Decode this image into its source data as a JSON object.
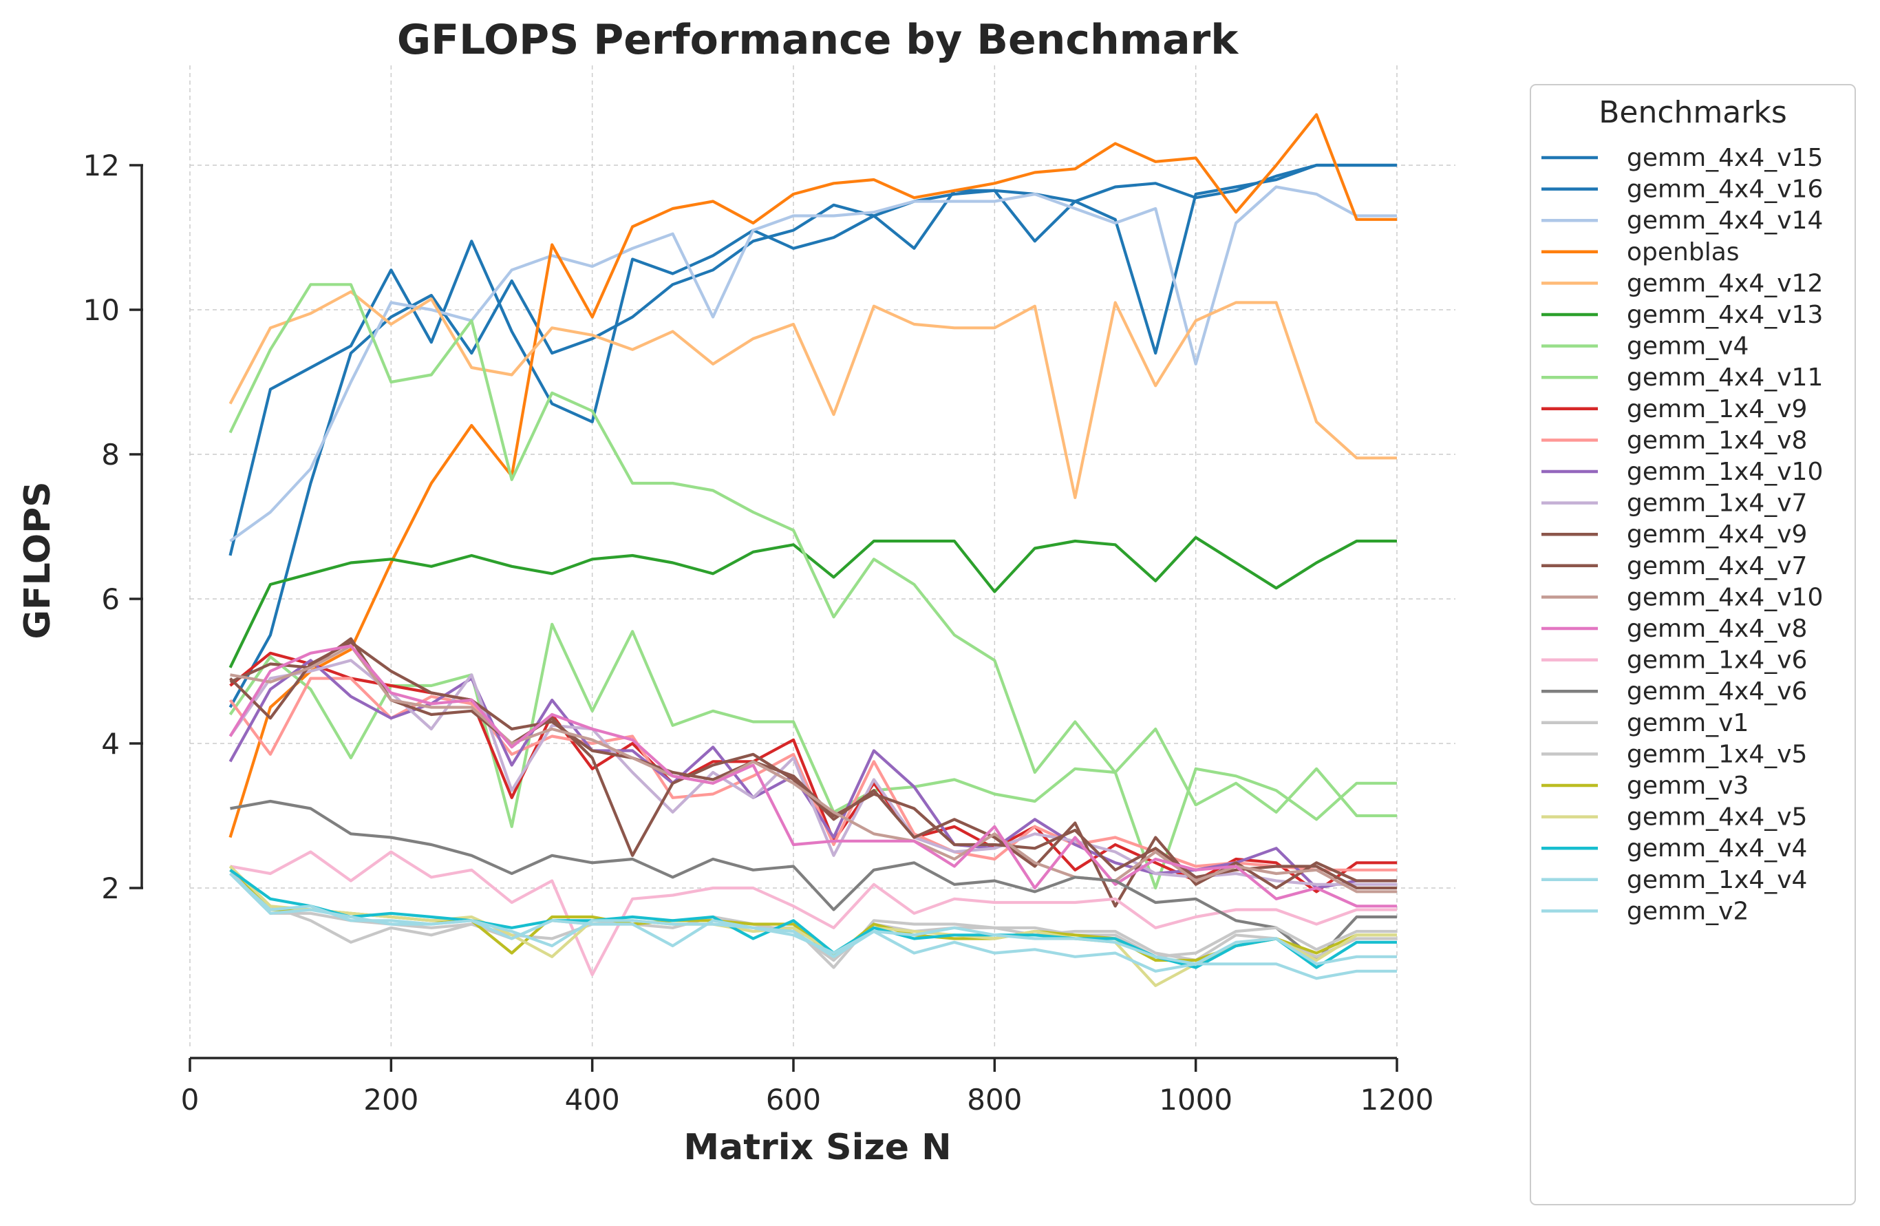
{
  "chart_data": {
    "type": "line",
    "title": "GFLOPS Performance by Benchmark",
    "xlabel": "Matrix Size N",
    "ylabel": "GFLOPS",
    "xlim": [
      0,
      1200
    ],
    "ylim": [
      0,
      13
    ],
    "xticks": [
      "0",
      "200",
      "400",
      "600",
      "800",
      "1000",
      "1200"
    ],
    "yticks": [
      "2",
      "4",
      "6",
      "8",
      "10",
      "12"
    ],
    "grid": true,
    "legend": {
      "title": "Benchmarks",
      "placement": "right, outside"
    },
    "x": [
      40,
      80,
      120,
      160,
      200,
      240,
      280,
      320,
      360,
      400,
      440,
      480,
      520,
      560,
      600,
      640,
      680,
      720,
      760,
      800,
      840,
      880,
      920,
      960,
      1000,
      1040,
      1080,
      1120,
      1160,
      1200
    ],
    "series": [
      {
        "name": "gemm_4x4_v15",
        "color": "#1f77b4",
        "values": [
          4.5,
          5.5,
          7.6,
          9.4,
          9.9,
          10.2,
          9.4,
          10.4,
          9.4,
          9.6,
          9.9,
          10.35,
          10.55,
          10.95,
          11.1,
          11.45,
          11.3,
          11.5,
          11.6,
          11.65,
          11.6,
          11.5,
          11.25,
          9.4,
          11.6,
          11.7,
          11.8,
          12.0,
          12.0,
          12.0
        ]
      },
      {
        "name": "gemm_4x4_v16",
        "color": "#1f77b4",
        "values": [
          6.6,
          8.9,
          9.2,
          9.5,
          10.55,
          9.55,
          10.95,
          9.7,
          8.7,
          8.45,
          10.7,
          10.5,
          10.75,
          11.1,
          10.85,
          11.0,
          11.3,
          10.85,
          11.65,
          11.65,
          10.95,
          11.5,
          11.7,
          11.75,
          11.55,
          11.65,
          11.85,
          12.0,
          12.0,
          12.0
        ]
      },
      {
        "name": "gemm_4x4_v14",
        "color": "#aec7e8",
        "values": [
          6.8,
          7.2,
          7.8,
          9.0,
          10.1,
          10.0,
          9.85,
          10.55,
          10.75,
          10.6,
          10.85,
          11.05,
          9.9,
          11.1,
          11.3,
          11.3,
          11.35,
          11.5,
          11.5,
          11.5,
          11.6,
          11.4,
          11.2,
          11.4,
          9.25,
          11.2,
          11.7,
          11.6,
          11.3,
          11.3
        ]
      },
      {
        "name": "openblas",
        "color": "#ff7f0e",
        "values": [
          2.7,
          4.5,
          5.0,
          5.3,
          6.5,
          7.6,
          8.4,
          7.7,
          10.9,
          9.9,
          11.15,
          11.4,
          11.5,
          11.2,
          11.6,
          11.75,
          11.8,
          11.55,
          11.65,
          11.75,
          11.9,
          11.95,
          12.3,
          12.05,
          12.1,
          11.35,
          12.0,
          12.7,
          11.25,
          11.25
        ]
      },
      {
        "name": "gemm_4x4_v12",
        "color": "#ffbb78",
        "values": [
          8.7,
          9.75,
          9.95,
          10.25,
          9.8,
          10.15,
          9.2,
          9.1,
          9.75,
          9.65,
          9.45,
          9.7,
          9.25,
          9.6,
          9.8,
          8.55,
          10.05,
          9.8,
          9.75,
          9.75,
          10.05,
          7.4,
          10.1,
          8.95,
          9.85,
          10.1,
          10.1,
          8.45,
          7.95,
          7.95
        ]
      },
      {
        "name": "gemm_4x4_v13",
        "color": "#2ca02c",
        "values": [
          5.05,
          6.2,
          6.35,
          6.5,
          6.55,
          6.45,
          6.6,
          6.45,
          6.35,
          6.55,
          6.6,
          6.5,
          6.35,
          6.65,
          6.75,
          6.3,
          6.8,
          6.8,
          6.8,
          6.1,
          6.7,
          6.8,
          6.75,
          6.25,
          6.85,
          6.5,
          6.15,
          6.5,
          6.8,
          6.8
        ]
      },
      {
        "name": "gemm_v4",
        "color": "#98df8a",
        "values": [
          8.3,
          9.45,
          10.35,
          10.35,
          9.0,
          9.1,
          9.85,
          7.65,
          8.85,
          8.6,
          7.6,
          7.6,
          7.5,
          7.2,
          6.95,
          5.75,
          6.55,
          6.2,
          5.5,
          5.15,
          3.6,
          4.3,
          3.6,
          2.0,
          3.65,
          3.55,
          3.35,
          2.95,
          3.45,
          3.45
        ]
      },
      {
        "name": "gemm_4x4_v11",
        "color": "#98df8a",
        "values": [
          4.4,
          5.2,
          4.75,
          3.8,
          4.8,
          4.8,
          4.95,
          2.85,
          5.65,
          4.45,
          5.55,
          4.25,
          4.45,
          4.3,
          4.3,
          3.05,
          3.35,
          3.4,
          3.5,
          3.3,
          3.2,
          3.65,
          3.6,
          4.2,
          3.15,
          3.45,
          3.05,
          3.65,
          3.0,
          3.0
        ]
      },
      {
        "name": "gemm_1x4_v9",
        "color": "#d62728",
        "values": [
          4.8,
          5.25,
          5.1,
          4.9,
          4.8,
          4.7,
          4.6,
          3.25,
          4.4,
          3.65,
          4.0,
          3.45,
          3.75,
          3.75,
          4.05,
          2.65,
          3.45,
          2.7,
          2.85,
          2.55,
          2.85,
          2.25,
          2.6,
          2.35,
          2.1,
          2.4,
          2.35,
          1.95,
          2.35,
          2.35
        ]
      },
      {
        "name": "gemm_1x4_v8",
        "color": "#ff9896",
        "values": [
          4.6,
          3.85,
          4.9,
          4.9,
          4.35,
          4.65,
          4.55,
          3.85,
          4.1,
          4.0,
          4.1,
          3.25,
          3.3,
          3.55,
          3.85,
          2.6,
          3.75,
          2.75,
          2.5,
          2.4,
          2.85,
          2.6,
          2.7,
          2.5,
          2.3,
          2.35,
          2.3,
          2.25,
          2.25,
          2.25
        ]
      },
      {
        "name": "gemm_1x4_v10",
        "color": "#9467bd",
        "values": [
          3.75,
          4.75,
          5.15,
          4.65,
          4.35,
          4.55,
          4.9,
          3.7,
          4.6,
          3.9,
          3.9,
          3.45,
          3.95,
          3.25,
          3.55,
          2.7,
          3.9,
          3.4,
          2.6,
          2.55,
          2.95,
          2.6,
          2.35,
          2.2,
          2.25,
          2.35,
          2.55,
          2.0,
          2.1,
          2.1
        ]
      },
      {
        "name": "gemm_1x4_v7",
        "color": "#c5b0d5",
        "values": [
          4.1,
          4.9,
          5.0,
          5.15,
          4.7,
          4.2,
          4.95,
          3.35,
          4.25,
          4.2,
          3.6,
          3.05,
          3.6,
          3.25,
          3.8,
          2.45,
          3.5,
          2.7,
          2.5,
          2.55,
          2.75,
          2.65,
          2.5,
          2.2,
          2.15,
          2.2,
          2.1,
          2.05,
          2.05,
          2.05
        ]
      },
      {
        "name": "gemm_4x4_v9",
        "color": "#8c564b",
        "values": [
          4.9,
          4.35,
          5.1,
          5.4,
          5.0,
          4.7,
          4.6,
          4.2,
          4.3,
          3.9,
          3.8,
          3.6,
          3.5,
          3.75,
          3.55,
          3.0,
          3.3,
          3.1,
          2.6,
          2.6,
          2.55,
          2.8,
          2.25,
          2.55,
          2.15,
          2.25,
          2.3,
          2.3,
          2.0,
          2.0
        ]
      },
      {
        "name": "gemm_4x4_v7",
        "color": "#8c564b",
        "values": [
          4.85,
          5.1,
          5.05,
          5.45,
          4.6,
          4.4,
          4.45,
          4.0,
          4.35,
          3.8,
          2.45,
          3.45,
          3.7,
          3.85,
          3.5,
          2.95,
          3.35,
          2.7,
          2.95,
          2.7,
          2.3,
          2.9,
          1.75,
          2.7,
          2.05,
          2.35,
          2.0,
          2.35,
          2.1,
          2.1
        ]
      },
      {
        "name": "gemm_4x4_v10",
        "color": "#c49c94",
        "values": [
          4.95,
          4.85,
          5.05,
          5.35,
          4.6,
          4.5,
          4.5,
          4.0,
          4.2,
          4.05,
          3.8,
          3.55,
          3.45,
          3.75,
          3.45,
          3.05,
          2.75,
          2.65,
          2.4,
          2.75,
          2.35,
          2.15,
          2.1,
          2.5,
          2.1,
          2.3,
          2.2,
          2.25,
          1.95,
          1.95
        ]
      },
      {
        "name": "gemm_4x4_v8",
        "color": "#e377c2",
        "values": [
          4.1,
          5.0,
          5.25,
          5.35,
          4.7,
          4.55,
          4.6,
          3.95,
          4.4,
          4.2,
          4.05,
          3.55,
          3.45,
          3.7,
          2.6,
          2.65,
          2.65,
          2.65,
          2.3,
          2.85,
          2.0,
          2.7,
          2.05,
          2.4,
          2.25,
          2.3,
          1.85,
          2.0,
          1.75,
          1.75
        ]
      },
      {
        "name": "gemm_1x4_v6",
        "color": "#f7b6d2",
        "values": [
          2.3,
          2.2,
          2.5,
          2.1,
          2.5,
          2.15,
          2.25,
          1.8,
          2.1,
          0.8,
          1.85,
          1.9,
          2.0,
          2.0,
          1.75,
          1.45,
          2.05,
          1.65,
          1.85,
          1.8,
          1.8,
          1.8,
          1.85,
          1.45,
          1.6,
          1.7,
          1.7,
          1.5,
          1.7,
          1.7
        ]
      },
      {
        "name": "gemm_4x4_v6",
        "color": "#7f7f7f",
        "values": [
          3.1,
          3.2,
          3.1,
          2.75,
          2.7,
          2.6,
          2.45,
          2.2,
          2.45,
          2.35,
          2.4,
          2.15,
          2.4,
          2.25,
          2.3,
          1.7,
          2.25,
          2.35,
          2.05,
          2.1,
          1.95,
          2.15,
          2.1,
          1.8,
          1.85,
          1.55,
          1.45,
          1.0,
          1.6,
          1.6
        ]
      },
      {
        "name": "gemm_v1",
        "color": "#c7c7c7",
        "values": [
          2.3,
          1.75,
          1.55,
          1.25,
          1.45,
          1.35,
          1.5,
          1.35,
          1.3,
          1.5,
          1.55,
          1.5,
          1.5,
          1.45,
          1.45,
          0.9,
          1.55,
          1.5,
          1.5,
          1.45,
          1.45,
          1.35,
          1.35,
          1.05,
          1.1,
          1.4,
          1.45,
          1.15,
          1.4,
          1.4
        ]
      },
      {
        "name": "gemm_1x4_v5",
        "color": "#c7c7c7",
        "values": [
          2.25,
          1.65,
          1.65,
          1.55,
          1.5,
          1.45,
          1.5,
          1.3,
          1.55,
          1.5,
          1.5,
          1.45,
          1.6,
          1.5,
          1.4,
          1.0,
          1.5,
          1.4,
          1.45,
          1.45,
          1.35,
          1.4,
          1.4,
          1.1,
          1.0,
          1.35,
          1.3,
          1.05,
          1.3,
          1.3
        ]
      },
      {
        "name": "gemm_v3",
        "color": "#bcbd22",
        "values": [
          2.3,
          1.7,
          1.7,
          1.65,
          1.6,
          1.55,
          1.55,
          1.1,
          1.6,
          1.6,
          1.5,
          1.55,
          1.55,
          1.5,
          1.5,
          1.05,
          1.5,
          1.35,
          1.3,
          1.3,
          1.4,
          1.35,
          1.3,
          1.0,
          1.0,
          1.2,
          1.3,
          1.1,
          1.35,
          1.35
        ]
      },
      {
        "name": "gemm_4x4_v5",
        "color": "#dbdb8d",
        "values": [
          2.3,
          1.75,
          1.7,
          1.65,
          1.6,
          1.55,
          1.6,
          1.35,
          1.05,
          1.55,
          1.55,
          1.5,
          1.5,
          1.4,
          1.45,
          1.1,
          1.45,
          1.4,
          1.35,
          1.3,
          1.4,
          1.3,
          1.25,
          0.65,
          0.95,
          1.2,
          1.3,
          1.0,
          1.35,
          1.35
        ]
      },
      {
        "name": "gemm_4x4_v4",
        "color": "#17becf",
        "values": [
          2.25,
          1.85,
          1.75,
          1.6,
          1.65,
          1.6,
          1.55,
          1.45,
          1.55,
          1.55,
          1.6,
          1.55,
          1.6,
          1.3,
          1.55,
          1.1,
          1.45,
          1.3,
          1.35,
          1.35,
          1.35,
          1.3,
          1.3,
          1.05,
          0.9,
          1.2,
          1.3,
          0.9,
          1.25,
          1.25
        ]
      },
      {
        "name": "gemm_1x4_v4",
        "color": "#9edae5",
        "values": [
          2.2,
          1.65,
          1.7,
          1.6,
          1.5,
          1.5,
          1.55,
          1.4,
          1.2,
          1.55,
          1.55,
          1.5,
          1.5,
          1.45,
          1.4,
          1.05,
          1.4,
          1.35,
          1.45,
          1.35,
          1.3,
          1.3,
          1.25,
          1.05,
          0.95,
          1.25,
          1.3,
          0.95,
          1.05,
          1.05
        ]
      },
      {
        "name": "gemm_v2",
        "color": "#9edae5",
        "values": [
          2.2,
          1.7,
          1.75,
          1.55,
          1.55,
          1.5,
          1.55,
          1.3,
          1.55,
          1.5,
          1.5,
          1.2,
          1.55,
          1.45,
          1.35,
          1.1,
          1.4,
          1.1,
          1.25,
          1.1,
          1.15,
          1.05,
          1.1,
          0.85,
          0.95,
          0.95,
          0.95,
          0.75,
          0.85,
          0.85
        ]
      }
    ]
  }
}
